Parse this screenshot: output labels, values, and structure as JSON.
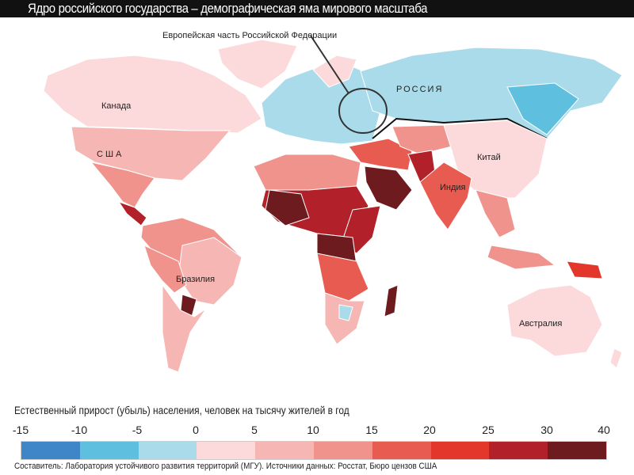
{
  "title": "Ядро российского государства – демографическая яма мирового масштаба",
  "callout": "Европейская часть Российской Федерации",
  "labels": {
    "canada": "Канада",
    "usa": "США",
    "brazil": "Бразилия",
    "russia": "РОССИЯ",
    "china": "Китай",
    "india": "Индия",
    "australia": "Австралия"
  },
  "legend": {
    "title": "Естественный прирост (убыль) населения, человек на тысячу жителей в год",
    "ticks": [
      "-15",
      "-10",
      "-5",
      "0",
      "5",
      "10",
      "15",
      "20",
      "25",
      "30",
      "40"
    ],
    "colors": [
      "#3f86c8",
      "#5ec0de",
      "#aadbea",
      "#fcdadb",
      "#f6b7b4",
      "#f1938d",
      "#e85b51",
      "#e3372b",
      "#b2212a",
      "#6d1b1f"
    ]
  },
  "credits": "Составитель: Лаборатория устойчивого развития территорий (МГУ).   Источники данных: Росстат, Бюро цензов США"
}
